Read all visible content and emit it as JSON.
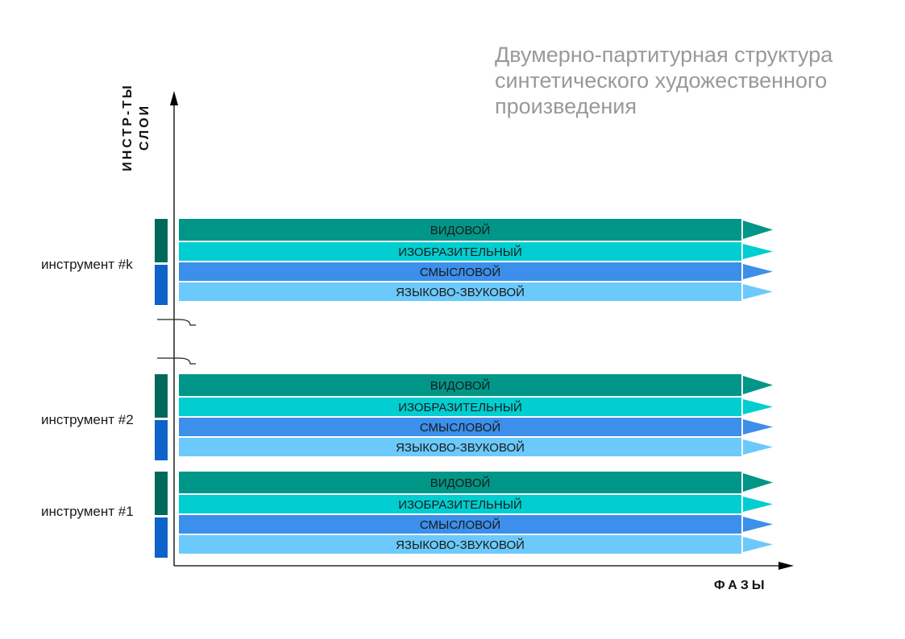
{
  "title": {
    "line1": "Двумерно-партитурная структура",
    "line2": "синтетического художественного",
    "line3": "произведения"
  },
  "axes": {
    "y_label_line1": "ИНСТР-ТЫ",
    "y_label_line2": "СЛОИ",
    "x_label": "ФАЗЫ"
  },
  "layer_colors": [
    "#009688",
    "#00CED1",
    "#3C8FEA",
    "#6CC9FB"
  ],
  "bracket_colors": [
    "#00695C",
    "#0D63C9"
  ],
  "axis_color": "#000000",
  "instruments": [
    {
      "label": "инструмент #k",
      "layers": [
        "ВИДОВОЙ",
        "ИЗОБРАЗИТЕЛЬНЫЙ",
        "СМЫСЛОВОЙ",
        "ЯЗЫКОВО-ЗВУКОВОЙ"
      ]
    },
    {
      "label": "инструмент #2",
      "layers": [
        "ВИДОВОЙ",
        "ИЗОБРАЗИТЕЛЬНЫЙ",
        "СМЫСЛОВОЙ",
        "ЯЗЫКОВО-ЗВУКОВОЙ"
      ]
    },
    {
      "label": "инструмент #1",
      "layers": [
        "ВИДОВОЙ",
        "ИЗОБРАЗИТЕЛЬНЫЙ",
        "СМЫСЛОВОЙ",
        "ЯЗЫКОВО-ЗВУКОВОЙ"
      ]
    }
  ]
}
